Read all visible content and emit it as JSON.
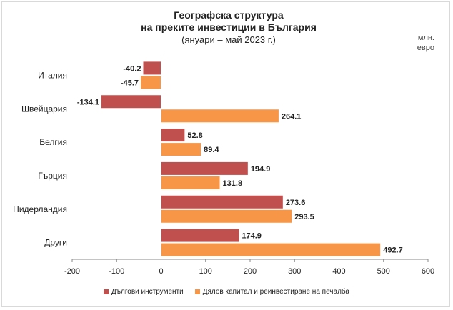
{
  "chart_data": {
    "type": "bar",
    "orientation": "horizontal",
    "title": "Географска структура",
    "title_line2": "на преките инвестиции в България",
    "subtitle": "(януари – май 2023 г.)",
    "unit": "млн. евро",
    "categories": [
      "Италия",
      "Швейцария",
      "Белгия",
      "Гърция",
      "Нидерландия",
      "Други"
    ],
    "series": [
      {
        "name": "Дългови инструменти",
        "color": "#c0504d",
        "values": [
          -40.2,
          -134.1,
          52.8,
          194.9,
          273.6,
          174.9
        ],
        "labels": [
          "-40.2",
          "-134.1",
          "52.8",
          "194.9",
          "273.6",
          "174.9"
        ]
      },
      {
        "name": "Дялов капитал и реинвестиране на печалба",
        "color": "#f79646",
        "values": [
          -45.7,
          264.1,
          89.4,
          131.8,
          293.5,
          492.7
        ],
        "labels": [
          "-45.7",
          "264.1",
          "89.4",
          "131.8",
          "293.5",
          "492.7"
        ]
      }
    ],
    "xlim": [
      -200,
      600
    ],
    "xticks": [
      -200,
      -100,
      0,
      100,
      200,
      300,
      400,
      500,
      600
    ],
    "xtick_labels": [
      "-200",
      "-100",
      "0",
      "100",
      "200",
      "300",
      "400",
      "500",
      "600"
    ],
    "legend_position": "bottom",
    "grid": false
  }
}
